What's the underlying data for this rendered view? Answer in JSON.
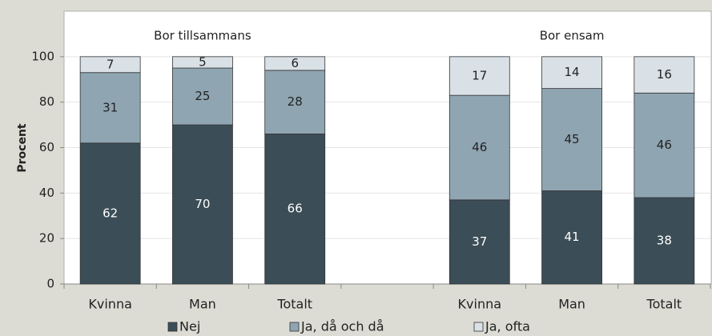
{
  "chart_data": {
    "type": "stacked_bar",
    "annotations": [
      "Bor tillsammans",
      "Bor ensam"
    ],
    "ylabel": "Procent",
    "categories": [
      "Kvinna",
      "Man",
      "Totalt",
      null,
      "Kvinna",
      "Man",
      "Totalt"
    ],
    "series": [
      {
        "name": "Nej",
        "color": "#3b4d56",
        "values": [
          62,
          70,
          66,
          null,
          37,
          41,
          38
        ]
      },
      {
        "name": "Ja, då och då",
        "color": "#8fa5b2",
        "values": [
          31,
          25,
          28,
          null,
          46,
          45,
          46
        ]
      },
      {
        "name": "Ja, ofta",
        "color": "#d9e1e6",
        "values": [
          7,
          5,
          6,
          null,
          17,
          14,
          16
        ]
      }
    ],
    "ylim": [
      0,
      120
    ],
    "yticks": [
      0,
      20,
      40,
      60,
      80,
      100
    ],
    "grid": true
  }
}
